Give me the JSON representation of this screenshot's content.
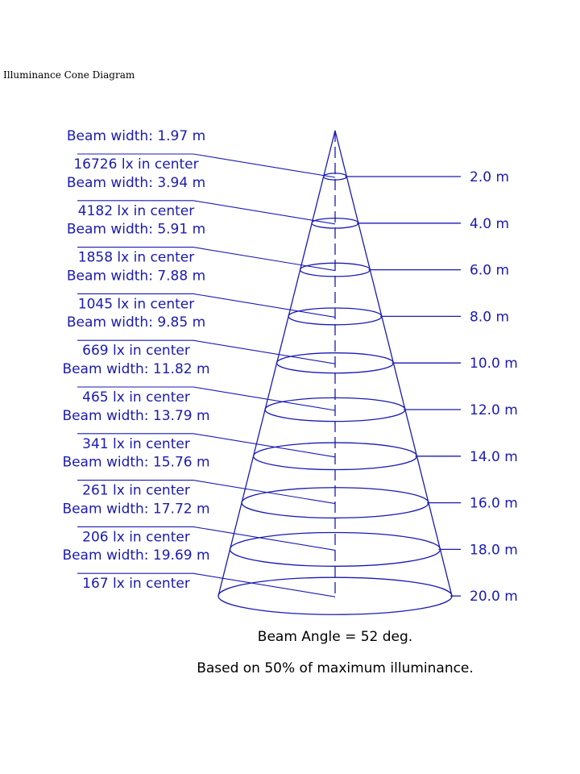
{
  "title": "Illuminance Cone Diagram",
  "beam_angle_label": "Beam Angle = 52 deg.",
  "basis_label": "Based on 50% of maximum illuminance.",
  "colors": {
    "line": "#1a1ab4",
    "text": "#1a1ab4",
    "title": "#000000"
  },
  "levels": [
    {
      "distance_label": "2.0 m",
      "width_label": "Beam width: 1.97 m",
      "center_label": "16726 lx in center"
    },
    {
      "distance_label": "4.0 m",
      "width_label": "Beam width: 3.94 m",
      "center_label": "4182 lx in center"
    },
    {
      "distance_label": "6.0 m",
      "width_label": "Beam width: 5.91 m",
      "center_label": "1858 lx in center"
    },
    {
      "distance_label": "8.0 m",
      "width_label": "Beam width: 7.88 m",
      "center_label": "1045 lx in center"
    },
    {
      "distance_label": "10.0 m",
      "width_label": "Beam width: 9.85 m",
      "center_label": "669 lx in center"
    },
    {
      "distance_label": "12.0 m",
      "width_label": "Beam width: 11.82 m",
      "center_label": "465 lx in center"
    },
    {
      "distance_label": "14.0 m",
      "width_label": "Beam width: 13.79 m",
      "center_label": "341 lx in center"
    },
    {
      "distance_label": "16.0 m",
      "width_label": "Beam width: 15.76 m",
      "center_label": "261 lx in center"
    },
    {
      "distance_label": "18.0 m",
      "width_label": "Beam width: 17.72 m",
      "center_label": "206 lx in center"
    },
    {
      "distance_label": "20.0 m",
      "width_label": "Beam width: 19.69 m",
      "center_label": "167 lx in center"
    }
  ]
}
